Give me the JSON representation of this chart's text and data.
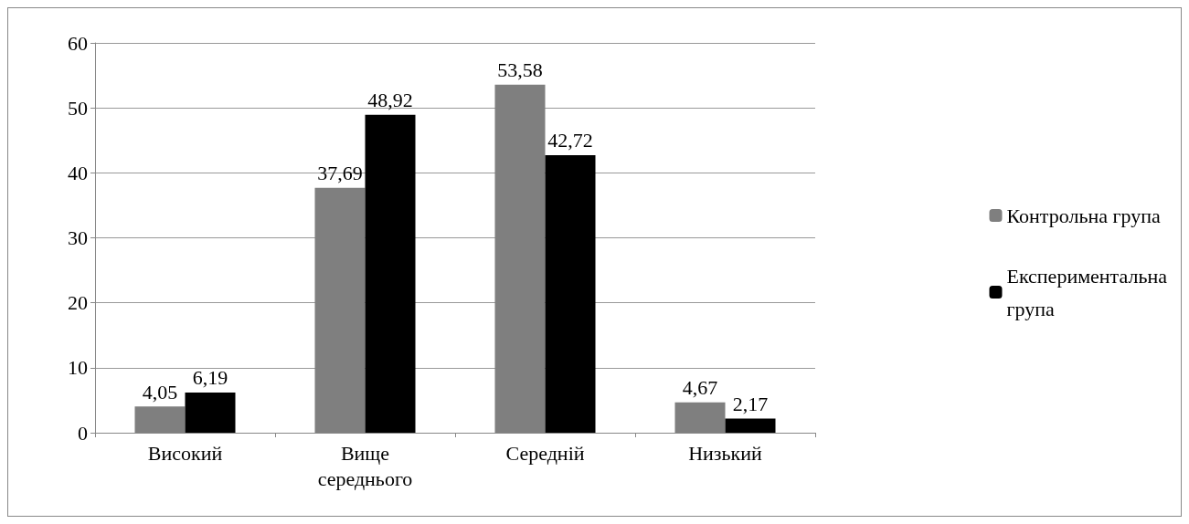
{
  "chart_data": {
    "type": "bar",
    "categories": [
      "Високий",
      "Вище середнього",
      "Середній",
      "Низький"
    ],
    "series": [
      {
        "name": "Контрольна група",
        "color": "#7f7f7f",
        "values": [
          4.05,
          37.69,
          53.58,
          4.67
        ],
        "value_labels": [
          "4,05",
          "37,69",
          "53,58",
          "4,67"
        ]
      },
      {
        "name": "Експериментальна група",
        "color": "#000000",
        "values": [
          6.19,
          48.92,
          42.72,
          2.17
        ],
        "value_labels": [
          "6,19",
          "48,92",
          "42,72",
          "2,17"
        ]
      }
    ],
    "ylim": [
      0,
      60
    ],
    "yticks": [
      0,
      10,
      20,
      30,
      40,
      50,
      60
    ],
    "grid": "y",
    "legend": "right"
  }
}
